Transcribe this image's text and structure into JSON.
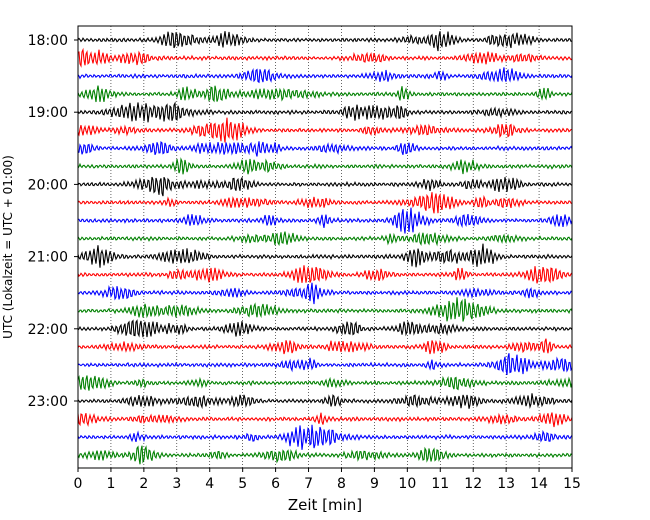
{
  "chart_data": {
    "type": "line",
    "title": "",
    "xlabel": "Zeit  [min]",
    "ylabel": "UTC (Lokalzeit = UTC + 01:00)",
    "xlim": [
      0,
      15
    ],
    "x_ticks": [
      "0",
      "1",
      "2",
      "3",
      "4",
      "5",
      "6",
      "7",
      "8",
      "9",
      "10",
      "11",
      "12",
      "13",
      "14",
      "15"
    ],
    "y_ticks": [
      "18:00",
      "19:00",
      "20:00",
      "21:00",
      "22:00",
      "23:00"
    ],
    "grid": "vertical dotted lines at each minute",
    "legend": "none",
    "trace_colors": [
      "#000000",
      "#ff0000",
      "#0000ff",
      "#008000"
    ],
    "series": [
      {
        "start": "18:00"
      },
      {
        "start": "18:15"
      },
      {
        "start": "18:30"
      },
      {
        "start": "18:45"
      },
      {
        "start": "19:00"
      },
      {
        "start": "19:15"
      },
      {
        "start": "19:30"
      },
      {
        "start": "19:45"
      },
      {
        "start": "20:00"
      },
      {
        "start": "20:15"
      },
      {
        "start": "20:30"
      },
      {
        "start": "20:45"
      },
      {
        "start": "21:00"
      },
      {
        "start": "21:15"
      },
      {
        "start": "21:30"
      },
      {
        "start": "21:45"
      },
      {
        "start": "22:00"
      },
      {
        "start": "22:15"
      },
      {
        "start": "22:30"
      },
      {
        "start": "22:45"
      },
      {
        "start": "23:00"
      },
      {
        "start": "23:15"
      },
      {
        "start": "23:30"
      },
      {
        "start": "23:45"
      }
    ]
  }
}
